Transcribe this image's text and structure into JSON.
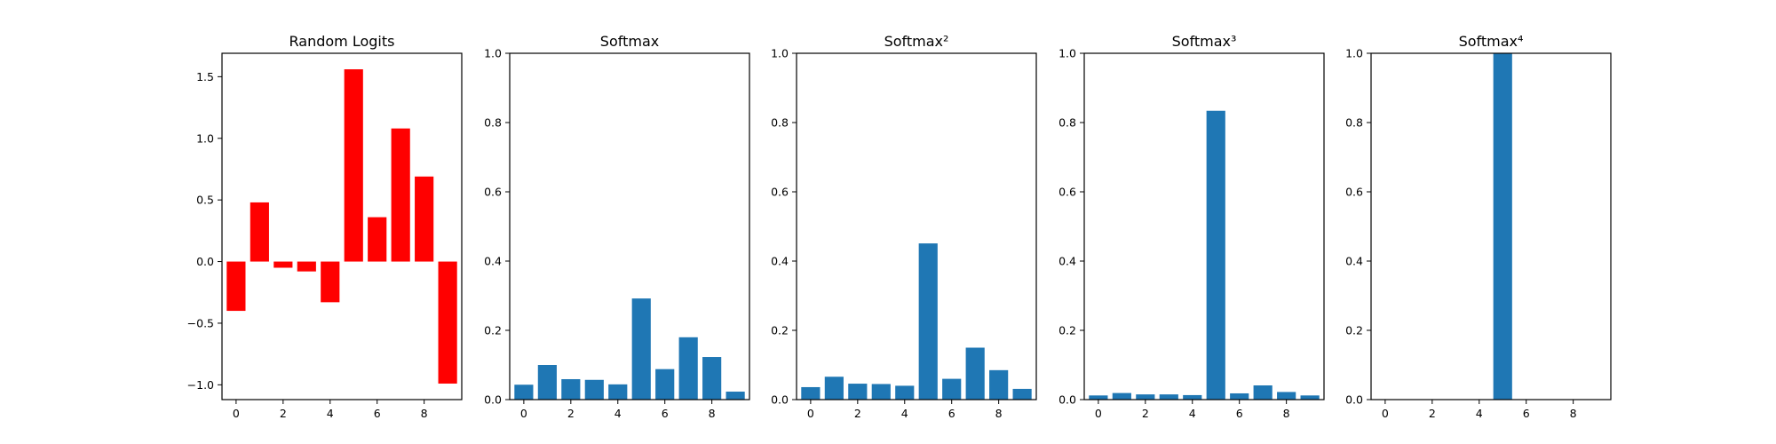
{
  "chart_data": [
    {
      "type": "bar",
      "title": "Random Logits",
      "xlabel": "",
      "ylabel": "",
      "bar_color": "#ff0000",
      "x": [
        0,
        1,
        2,
        3,
        4,
        5,
        6,
        7,
        8,
        9
      ],
      "values": [
        -0.4,
        0.48,
        -0.05,
        -0.08,
        -0.33,
        1.56,
        0.36,
        1.08,
        0.69,
        -0.99
      ],
      "xlim": [
        -0.6,
        9.6
      ],
      "ylim": [
        -1.12,
        1.69
      ],
      "xticks": [
        0,
        2,
        4,
        6,
        8
      ],
      "xtick_labels": [
        "0",
        "2",
        "4",
        "6",
        "8"
      ],
      "yticks": [
        -1.0,
        -0.5,
        0.0,
        0.5,
        1.0,
        1.5
      ],
      "ytick_labels": [
        "−1.0",
        "−0.5",
        "0.0",
        "0.5",
        "1.0",
        "1.5"
      ]
    },
    {
      "type": "bar",
      "title": "Softmax",
      "xlabel": "",
      "ylabel": "",
      "bar_color": "#1f77b4",
      "x": [
        0,
        1,
        2,
        3,
        4,
        5,
        6,
        7,
        8,
        9
      ],
      "values": [
        0.043,
        0.1,
        0.059,
        0.057,
        0.044,
        0.292,
        0.088,
        0.18,
        0.123,
        0.023
      ],
      "xlim": [
        -0.6,
        9.6
      ],
      "ylim": [
        0,
        1.0
      ],
      "xticks": [
        0,
        2,
        4,
        6,
        8
      ],
      "xtick_labels": [
        "0",
        "2",
        "4",
        "6",
        "8"
      ],
      "yticks": [
        0.0,
        0.2,
        0.4,
        0.6,
        0.8,
        1.0
      ],
      "ytick_labels": [
        "0.0",
        "0.2",
        "0.4",
        "0.6",
        "0.8",
        "1.0"
      ]
    },
    {
      "type": "bar",
      "title": "Softmax²",
      "xlabel": "",
      "ylabel": "",
      "bar_color": "#1f77b4",
      "x": [
        0,
        1,
        2,
        3,
        4,
        5,
        6,
        7,
        8,
        9
      ],
      "values": [
        0.036,
        0.066,
        0.046,
        0.045,
        0.04,
        0.451,
        0.06,
        0.15,
        0.085,
        0.031
      ],
      "xlim": [
        -0.6,
        9.6
      ],
      "ylim": [
        0,
        1.0
      ],
      "xticks": [
        0,
        2,
        4,
        6,
        8
      ],
      "xtick_labels": [
        "0",
        "2",
        "4",
        "6",
        "8"
      ],
      "yticks": [
        0.0,
        0.2,
        0.4,
        0.6,
        0.8,
        1.0
      ],
      "ytick_labels": [
        "0.0",
        "0.2",
        "0.4",
        "0.6",
        "0.8",
        "1.0"
      ]
    },
    {
      "type": "bar",
      "title": "Softmax³",
      "xlabel": "",
      "ylabel": "",
      "bar_color": "#1f77b4",
      "x": [
        0,
        1,
        2,
        3,
        4,
        5,
        6,
        7,
        8,
        9
      ],
      "values": [
        0.012,
        0.019,
        0.015,
        0.015,
        0.013,
        0.834,
        0.018,
        0.041,
        0.022,
        0.012
      ],
      "xlim": [
        -0.6,
        9.6
      ],
      "ylim": [
        0,
        1.0
      ],
      "xticks": [
        0,
        2,
        4,
        6,
        8
      ],
      "xtick_labels": [
        "0",
        "2",
        "4",
        "6",
        "8"
      ],
      "yticks": [
        0.0,
        0.2,
        0.4,
        0.6,
        0.8,
        1.0
      ],
      "ytick_labels": [
        "0.0",
        "0.2",
        "0.4",
        "0.6",
        "0.8",
        "1.0"
      ]
    },
    {
      "type": "bar",
      "title": "Softmax⁴",
      "xlabel": "",
      "ylabel": "",
      "bar_color": "#1f77b4",
      "x": [
        0,
        1,
        2,
        3,
        4,
        5,
        6,
        7,
        8,
        9
      ],
      "values": [
        0.0,
        0.0,
        0.0,
        0.0,
        0.0,
        1.0,
        0.0,
        0.0,
        0.0,
        0.0
      ],
      "xlim": [
        -0.6,
        9.6
      ],
      "ylim": [
        0,
        1.0
      ],
      "xticks": [
        0,
        2,
        4,
        6,
        8
      ],
      "xtick_labels": [
        "0",
        "2",
        "4",
        "6",
        "8"
      ],
      "yticks": [
        0.0,
        0.2,
        0.4,
        0.6,
        0.8,
        1.0
      ],
      "ytick_labels": [
        "0.0",
        "0.2",
        "0.4",
        "0.6",
        "0.8",
        "1.0"
      ]
    }
  ]
}
